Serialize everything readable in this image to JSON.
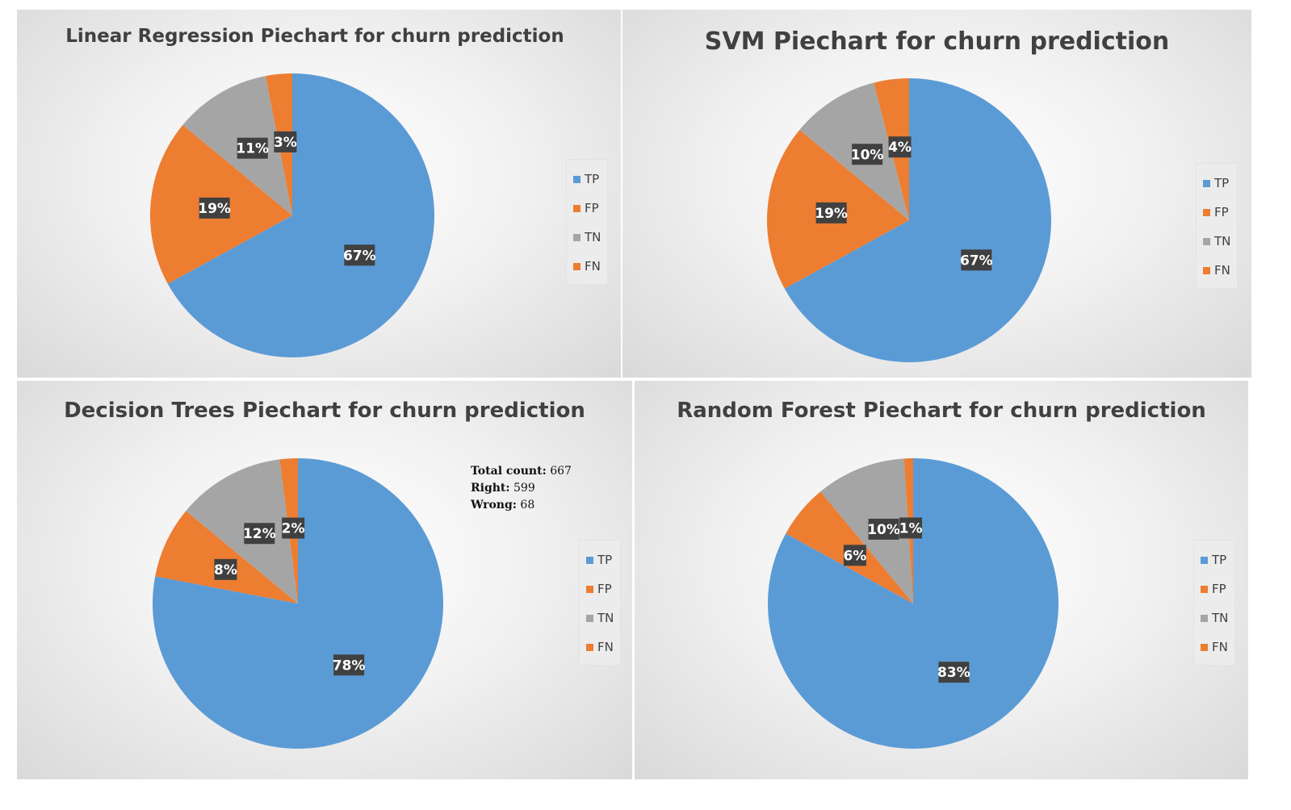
{
  "chart_data": [
    {
      "type": "pie",
      "title": "Linear Regression Piechart for churn prediction",
      "categories": [
        "TP",
        "FP",
        "TN",
        "FN"
      ],
      "values": [
        67,
        19,
        11,
        3
      ],
      "labels": [
        "67%",
        "19%",
        "11%",
        "3%"
      ],
      "legend": "right"
    },
    {
      "type": "pie",
      "title": "SVM Piechart for churn prediction",
      "categories": [
        "TP",
        "FP",
        "TN",
        "FN"
      ],
      "values": [
        67,
        19,
        10,
        4
      ],
      "labels": [
        "67%",
        "19%",
        "10%",
        "4%"
      ],
      "legend": "right"
    },
    {
      "type": "pie",
      "title": "Decision Trees Piechart for churn prediction",
      "categories": [
        "TP",
        "FP",
        "TN",
        "FN"
      ],
      "values": [
        78,
        8,
        12,
        2
      ],
      "labels": [
        "78%",
        "8%",
        "12%",
        "2%"
      ],
      "legend": "right",
      "annotation": {
        "total_label": "Total count:",
        "total_value": "667",
        "right_label": "Right:",
        "right_value": "599",
        "wrong_label": "Wrong:",
        "wrong_value": "68"
      }
    },
    {
      "type": "pie",
      "title": "Random Forest Piechart for churn prediction",
      "categories": [
        "TP",
        "FP",
        "TN",
        "FN"
      ],
      "values": [
        83,
        6,
        10,
        1
      ],
      "labels": [
        "83%",
        "6%",
        "10%",
        "1%"
      ],
      "legend": "right"
    }
  ],
  "colors": {
    "TP": "#5b9bd5",
    "FP": "#ed7d31",
    "TN": "#a5a5a5",
    "FN": "#ed7d31",
    "label_bg": "#404040"
  }
}
